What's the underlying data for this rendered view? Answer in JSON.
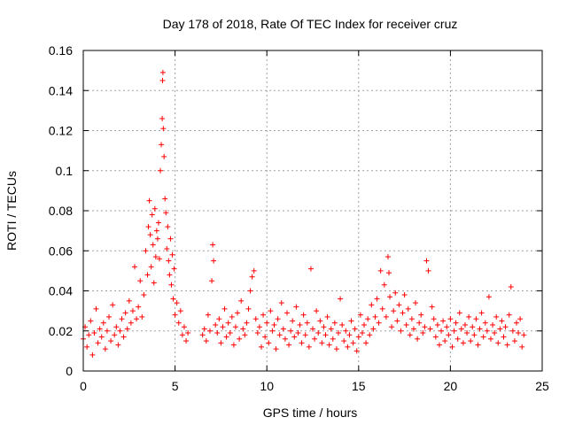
{
  "chart_data": {
    "type": "scatter",
    "title": "Day 178 of 2018, Rate Of TEC Index for receiver cruz",
    "xlabel": "GPS time / hours",
    "ylabel": "ROTI / TECUs",
    "xlim": [
      0,
      25
    ],
    "ylim": [
      0,
      0.16
    ],
    "x_ticks": [
      0,
      5,
      10,
      15,
      20,
      25
    ],
    "x_tick_labels": [
      "0",
      "5",
      "10",
      "15",
      "20",
      "25"
    ],
    "y_ticks": [
      0,
      0.02,
      0.04,
      0.06,
      0.08,
      0.1,
      0.12,
      0.14,
      0.16
    ],
    "y_tick_labels": [
      "0",
      "0.02",
      "0.04",
      "0.06",
      "0.08",
      "0.1",
      "0.12",
      "0.14",
      "0.16"
    ],
    "grid": true,
    "marker": "+",
    "color": "#ff0000",
    "series": [
      {
        "name": "ROTI",
        "points": [
          [
            0.0,
            0.016
          ],
          [
            0.1,
            0.022
          ],
          [
            0.2,
            0.012
          ],
          [
            0.3,
            0.018
          ],
          [
            0.4,
            0.025
          ],
          [
            0.5,
            0.008
          ],
          [
            0.6,
            0.019
          ],
          [
            0.7,
            0.031
          ],
          [
            0.8,
            0.014
          ],
          [
            0.9,
            0.021
          ],
          [
            1.0,
            0.017
          ],
          [
            1.1,
            0.024
          ],
          [
            1.2,
            0.011
          ],
          [
            1.3,
            0.02
          ],
          [
            1.4,
            0.027
          ],
          [
            1.5,
            0.015
          ],
          [
            1.6,
            0.033
          ],
          [
            1.7,
            0.018
          ],
          [
            1.8,
            0.022
          ],
          [
            1.9,
            0.013
          ],
          [
            2.0,
            0.02
          ],
          [
            2.1,
            0.026
          ],
          [
            2.2,
            0.017
          ],
          [
            2.3,
            0.029
          ],
          [
            2.4,
            0.021
          ],
          [
            2.5,
            0.035
          ],
          [
            2.6,
            0.024
          ],
          [
            2.7,
            0.03
          ],
          [
            2.8,
            0.052
          ],
          [
            2.9,
            0.026
          ],
          [
            3.0,
            0.032
          ],
          [
            3.1,
            0.045
          ],
          [
            3.2,
            0.027
          ],
          [
            3.3,
            0.038
          ],
          [
            3.4,
            0.06
          ],
          [
            3.5,
            0.048
          ],
          [
            3.55,
            0.072
          ],
          [
            3.6,
            0.085
          ],
          [
            3.65,
            0.068
          ],
          [
            3.7,
            0.052
          ],
          [
            3.75,
            0.078
          ],
          [
            3.8,
            0.063
          ],
          [
            3.85,
            0.044
          ],
          [
            3.9,
            0.081
          ],
          [
            3.95,
            0.057
          ],
          [
            4.0,
            0.07
          ],
          [
            4.05,
            0.066
          ],
          [
            4.1,
            0.074
          ],
          [
            4.15,
            0.056
          ],
          [
            4.2,
            0.1
          ],
          [
            4.25,
            0.113
          ],
          [
            4.3,
            0.126
          ],
          [
            4.32,
            0.145
          ],
          [
            4.34,
            0.149
          ],
          [
            4.36,
            0.121
          ],
          [
            4.4,
            0.107
          ],
          [
            4.45,
            0.086
          ],
          [
            4.5,
            0.079
          ],
          [
            4.55,
            0.061
          ],
          [
            4.6,
            0.072
          ],
          [
            4.65,
            0.055
          ],
          [
            4.7,
            0.048
          ],
          [
            4.75,
            0.066
          ],
          [
            4.8,
            0.043
          ],
          [
            4.85,
            0.058
          ],
          [
            4.9,
            0.036
          ],
          [
            4.95,
            0.051
          ],
          [
            5.0,
            0.028
          ],
          [
            5.1,
            0.034
          ],
          [
            5.2,
            0.024
          ],
          [
            5.3,
            0.03
          ],
          [
            5.4,
            0.018
          ],
          [
            5.5,
            0.022
          ],
          [
            5.6,
            0.015
          ],
          [
            5.7,
            0.019
          ],
          [
            6.5,
            0.018
          ],
          [
            6.6,
            0.021
          ],
          [
            6.7,
            0.015
          ],
          [
            6.8,
            0.028
          ],
          [
            6.9,
            0.02
          ],
          [
            7.0,
            0.045
          ],
          [
            7.05,
            0.063
          ],
          [
            7.1,
            0.055
          ],
          [
            7.2,
            0.023
          ],
          [
            7.3,
            0.019
          ],
          [
            7.4,
            0.026
          ],
          [
            7.5,
            0.014
          ],
          [
            7.6,
            0.022
          ],
          [
            7.7,
            0.031
          ],
          [
            7.8,
            0.017
          ],
          [
            7.9,
            0.024
          ],
          [
            8.0,
            0.019
          ],
          [
            8.1,
            0.027
          ],
          [
            8.2,
            0.013
          ],
          [
            8.3,
            0.022
          ],
          [
            8.4,
            0.029
          ],
          [
            8.5,
            0.016
          ],
          [
            8.6,
            0.035
          ],
          [
            8.7,
            0.021
          ],
          [
            8.8,
            0.018
          ],
          [
            8.9,
            0.024
          ],
          [
            9.0,
            0.031
          ],
          [
            9.1,
            0.04
          ],
          [
            9.2,
            0.047
          ],
          [
            9.3,
            0.05
          ],
          [
            9.4,
            0.026
          ],
          [
            9.5,
            0.019
          ],
          [
            9.6,
            0.022
          ],
          [
            9.7,
            0.012
          ],
          [
            9.8,
            0.028
          ],
          [
            9.9,
            0.017
          ],
          [
            10.0,
            0.024
          ],
          [
            10.1,
            0.014
          ],
          [
            10.2,
            0.03
          ],
          [
            10.3,
            0.02
          ],
          [
            10.4,
            0.023
          ],
          [
            10.5,
            0.011
          ],
          [
            10.6,
            0.026
          ],
          [
            10.7,
            0.018
          ],
          [
            10.8,
            0.034
          ],
          [
            10.9,
            0.021
          ],
          [
            11.0,
            0.016
          ],
          [
            11.1,
            0.029
          ],
          [
            11.2,
            0.013
          ],
          [
            11.3,
            0.02
          ],
          [
            11.4,
            0.025
          ],
          [
            11.5,
            0.017
          ],
          [
            11.6,
            0.032
          ],
          [
            11.7,
            0.019
          ],
          [
            11.8,
            0.023
          ],
          [
            11.9,
            0.014
          ],
          [
            12.0,
            0.028
          ],
          [
            12.1,
            0.018
          ],
          [
            12.2,
            0.024
          ],
          [
            12.3,
            0.012
          ],
          [
            12.4,
            0.051
          ],
          [
            12.5,
            0.021
          ],
          [
            12.6,
            0.016
          ],
          [
            12.7,
            0.03
          ],
          [
            12.8,
            0.019
          ],
          [
            12.9,
            0.025
          ],
          [
            13.0,
            0.014
          ],
          [
            13.1,
            0.022
          ],
          [
            13.2,
            0.018
          ],
          [
            13.3,
            0.027
          ],
          [
            13.4,
            0.013
          ],
          [
            13.5,
            0.021
          ],
          [
            13.6,
            0.016
          ],
          [
            13.7,
            0.024
          ],
          [
            13.8,
            0.011
          ],
          [
            13.9,
            0.019
          ],
          [
            14.0,
            0.036
          ],
          [
            14.1,
            0.023
          ],
          [
            14.2,
            0.015
          ],
          [
            14.3,
            0.02
          ],
          [
            14.4,
            0.012
          ],
          [
            14.5,
            0.018
          ],
          [
            14.6,
            0.025
          ],
          [
            14.7,
            0.014
          ],
          [
            14.8,
            0.021
          ],
          [
            14.9,
            0.01
          ],
          [
            15.0,
            0.017
          ],
          [
            15.1,
            0.028
          ],
          [
            15.2,
            0.019
          ],
          [
            15.3,
            0.023
          ],
          [
            15.4,
            0.014
          ],
          [
            15.5,
            0.026
          ],
          [
            15.6,
            0.018
          ],
          [
            15.7,
            0.033
          ],
          [
            15.8,
            0.021
          ],
          [
            15.9,
            0.027
          ],
          [
            16.0,
            0.036
          ],
          [
            16.1,
            0.024
          ],
          [
            16.2,
            0.05
          ],
          [
            16.3,
            0.031
          ],
          [
            16.4,
            0.043
          ],
          [
            16.5,
            0.027
          ],
          [
            16.6,
            0.057
          ],
          [
            16.65,
            0.049
          ],
          [
            16.7,
            0.037
          ],
          [
            16.8,
            0.022
          ],
          [
            16.9,
            0.03
          ],
          [
            17.0,
            0.039
          ],
          [
            17.1,
            0.025
          ],
          [
            17.2,
            0.033
          ],
          [
            17.3,
            0.02
          ],
          [
            17.4,
            0.029
          ],
          [
            17.5,
            0.038
          ],
          [
            17.6,
            0.023
          ],
          [
            17.7,
            0.031
          ],
          [
            17.8,
            0.018
          ],
          [
            17.9,
            0.026
          ],
          [
            18.0,
            0.021
          ],
          [
            18.1,
            0.034
          ],
          [
            18.2,
            0.016
          ],
          [
            18.3,
            0.024
          ],
          [
            18.4,
            0.028
          ],
          [
            18.5,
            0.019
          ],
          [
            18.6,
            0.022
          ],
          [
            18.7,
            0.055
          ],
          [
            18.8,
            0.05
          ],
          [
            18.9,
            0.021
          ],
          [
            19.0,
            0.032
          ],
          [
            19.1,
            0.026
          ],
          [
            19.2,
            0.017
          ],
          [
            19.3,
            0.023
          ],
          [
            19.4,
            0.013
          ],
          [
            19.5,
            0.02
          ],
          [
            19.6,
            0.025
          ],
          [
            19.7,
            0.015
          ],
          [
            19.8,
            0.022
          ],
          [
            19.9,
            0.018
          ],
          [
            20.0,
            0.026
          ],
          [
            20.1,
            0.012
          ],
          [
            20.2,
            0.02
          ],
          [
            20.3,
            0.024
          ],
          [
            20.4,
            0.016
          ],
          [
            20.5,
            0.029
          ],
          [
            20.6,
            0.021
          ],
          [
            20.7,
            0.014
          ],
          [
            20.8,
            0.023
          ],
          [
            20.9,
            0.019
          ],
          [
            21.0,
            0.027
          ],
          [
            21.1,
            0.015
          ],
          [
            21.2,
            0.022
          ],
          [
            21.3,
            0.018
          ],
          [
            21.4,
            0.026
          ],
          [
            21.5,
            0.013
          ],
          [
            21.6,
            0.021
          ],
          [
            21.7,
            0.029
          ],
          [
            21.8,
            0.017
          ],
          [
            21.9,
            0.024
          ],
          [
            22.0,
            0.02
          ],
          [
            22.1,
            0.037
          ],
          [
            22.2,
            0.016
          ],
          [
            22.3,
            0.023
          ],
          [
            22.4,
            0.019
          ],
          [
            22.5,
            0.027
          ],
          [
            22.6,
            0.014
          ],
          [
            22.7,
            0.021
          ],
          [
            22.8,
            0.025
          ],
          [
            22.9,
            0.017
          ],
          [
            23.0,
            0.022
          ],
          [
            23.1,
            0.013
          ],
          [
            23.2,
            0.028
          ],
          [
            23.3,
            0.042
          ],
          [
            23.4,
            0.02
          ],
          [
            23.5,
            0.015
          ],
          [
            23.6,
            0.024
          ],
          [
            23.7,
            0.019
          ],
          [
            23.8,
            0.026
          ],
          [
            23.9,
            0.012
          ],
          [
            24.0,
            0.018
          ]
        ]
      }
    ]
  }
}
